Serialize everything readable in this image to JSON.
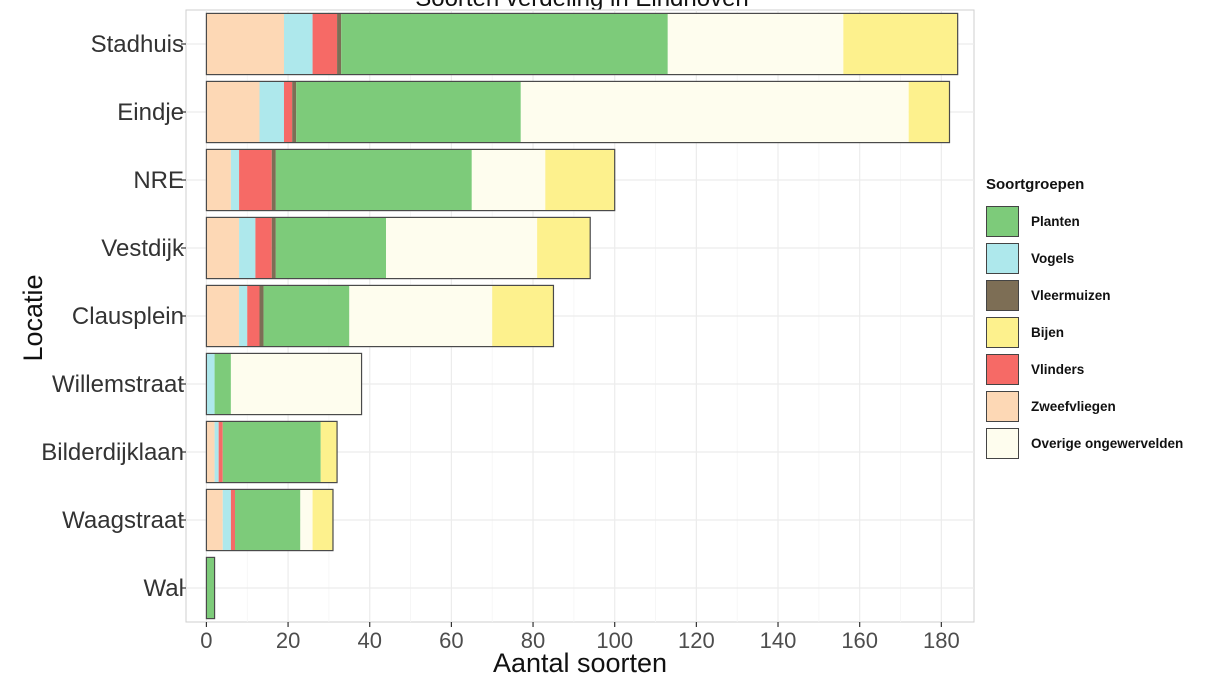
{
  "chart_data": {
    "type": "bar",
    "orientation": "horizontal",
    "stacked": true,
    "title": "Soorten verdeling in Eindhoven",
    "xlabel": "Aantal soorten",
    "ylabel": "Locatie",
    "xlim": [
      -5,
      188
    ],
    "xticks": [
      0,
      20,
      40,
      60,
      80,
      100,
      120,
      140,
      160,
      180
    ],
    "grid": true,
    "legend_position": "right",
    "legend_title": "Soortgroepen",
    "categories": [
      "Wal",
      "Waagstraat",
      "Bilderdijklaan",
      "Willemstraat",
      "Clausplein",
      "Vestdijk",
      "NRE",
      "Eindje",
      "Stadhuis"
    ],
    "stack_order": [
      "Zweefvliegen",
      "Vogels",
      "Vlinders",
      "Vleermuizen",
      "Planten",
      "Overige ongewervelden",
      "Bijen"
    ],
    "series": [
      {
        "name": "Planten",
        "color": "#7DCB7A",
        "values": [
          2,
          16,
          24,
          4,
          21,
          27,
          48,
          55,
          80
        ]
      },
      {
        "name": "Vogels",
        "color": "#AEE8EC",
        "values": [
          0,
          2,
          1,
          2,
          2,
          4,
          2,
          6,
          7
        ]
      },
      {
        "name": "Vleermuizen",
        "color": "#7D6E55",
        "values": [
          0,
          0,
          0,
          0,
          1,
          1,
          1,
          1,
          1
        ]
      },
      {
        "name": "Bijen",
        "color": "#FDF18D",
        "values": [
          0,
          5,
          4,
          0,
          15,
          13,
          17,
          10,
          28
        ]
      },
      {
        "name": "Vlinders",
        "color": "#F66A66",
        "values": [
          0,
          1,
          1,
          0,
          3,
          4,
          8,
          2,
          6
        ]
      },
      {
        "name": "Zweefvliegen",
        "color": "#FDD8B5",
        "values": [
          0,
          4,
          2,
          0,
          8,
          8,
          6,
          13,
          19
        ]
      },
      {
        "name": "Overige ongewervelden",
        "color": "#FEFDEE",
        "values": [
          0,
          3,
          0,
          32,
          35,
          37,
          18,
          95,
          43
        ]
      }
    ]
  }
}
